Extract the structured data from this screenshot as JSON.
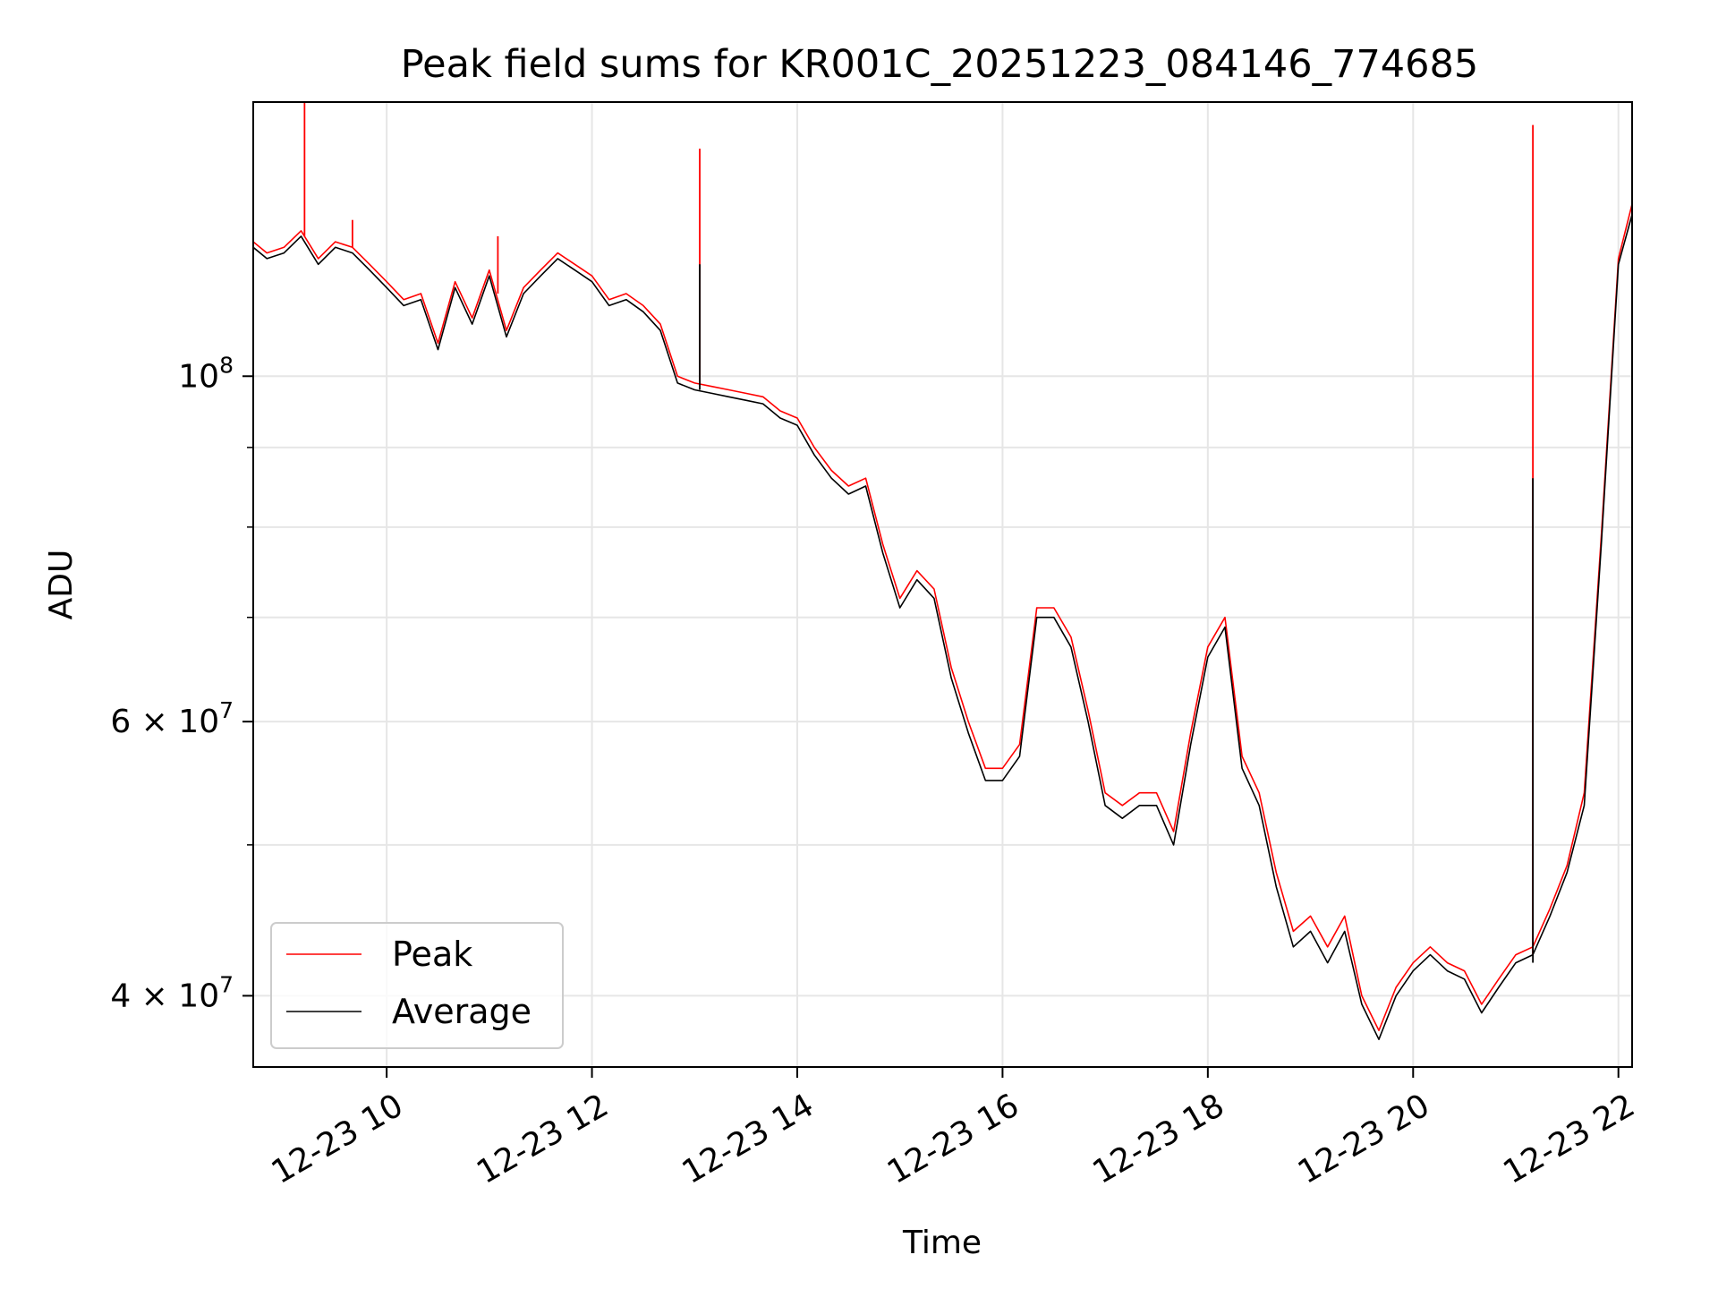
{
  "chart_data": {
    "type": "line",
    "title": "Peak field sums for KR001C_20251223_084146_774685",
    "xlabel": "Time",
    "ylabel": "ADU",
    "xlim": [
      "2025-12-23 08:42",
      "2025-12-23 22:08"
    ],
    "ylim": [
      36000000,
      150000000
    ],
    "yscale": "log",
    "grid": true,
    "legend": "lower-left",
    "colors": {
      "peak": "#ff0000",
      "average": "#000000",
      "grid": "#e6e6e6"
    },
    "x_ticks": [
      {
        "value": "2025-12-23 10:00",
        "label": "12-23 10"
      },
      {
        "value": "2025-12-23 12:00",
        "label": "12-23 12"
      },
      {
        "value": "2025-12-23 14:00",
        "label": "12-23 14"
      },
      {
        "value": "2025-12-23 16:00",
        "label": "12-23 16"
      },
      {
        "value": "2025-12-23 18:00",
        "label": "12-23 18"
      },
      {
        "value": "2025-12-23 20:00",
        "label": "12-23 20"
      },
      {
        "value": "2025-12-23 22:00",
        "label": "12-23 22"
      }
    ],
    "y_major_ticks": [
      {
        "value": 100000000,
        "base": "10",
        "exp": "8"
      },
      {
        "value": 60000000,
        "base": "6 × 10",
        "exp": "7"
      },
      {
        "value": 40000000,
        "base": "4 × 10",
        "exp": "7"
      }
    ],
    "y_minor_ticks": [
      50000000,
      70000000,
      80000000,
      90000000
    ],
    "series": [
      {
        "name": "Average",
        "x": [
          "2025-12-23 08:42",
          "2025-12-23 08:50",
          "2025-12-23 09:00",
          "2025-12-23 09:10",
          "2025-12-23 09:20",
          "2025-12-23 09:30",
          "2025-12-23 09:40",
          "2025-12-23 09:50",
          "2025-12-23 10:00",
          "2025-12-23 10:10",
          "2025-12-23 10:20",
          "2025-12-23 10:30",
          "2025-12-23 10:40",
          "2025-12-23 10:50",
          "2025-12-23 11:00",
          "2025-12-23 11:10",
          "2025-12-23 11:20",
          "2025-12-23 11:30",
          "2025-12-23 11:40",
          "2025-12-23 11:50",
          "2025-12-23 12:00",
          "2025-12-23 12:10",
          "2025-12-23 12:20",
          "2025-12-23 12:30",
          "2025-12-23 12:40",
          "2025-12-23 12:50",
          "2025-12-23 13:00",
          "2025-12-23 13:10",
          "2025-12-23 13:20",
          "2025-12-23 13:30",
          "2025-12-23 13:40",
          "2025-12-23 13:50",
          "2025-12-23 14:00",
          "2025-12-23 14:10",
          "2025-12-23 14:20",
          "2025-12-23 14:30",
          "2025-12-23 14:40",
          "2025-12-23 14:50",
          "2025-12-23 15:00",
          "2025-12-23 15:10",
          "2025-12-23 15:20",
          "2025-12-23 15:30",
          "2025-12-23 15:40",
          "2025-12-23 15:50",
          "2025-12-23 16:00",
          "2025-12-23 16:10",
          "2025-12-23 16:20",
          "2025-12-23 16:30",
          "2025-12-23 16:40",
          "2025-12-23 16:50",
          "2025-12-23 17:00",
          "2025-12-23 17:10",
          "2025-12-23 17:20",
          "2025-12-23 17:30",
          "2025-12-23 17:40",
          "2025-12-23 17:50",
          "2025-12-23 18:00",
          "2025-12-23 18:10",
          "2025-12-23 18:20",
          "2025-12-23 18:30",
          "2025-12-23 18:40",
          "2025-12-23 18:50",
          "2025-12-23 19:00",
          "2025-12-23 19:10",
          "2025-12-23 19:20",
          "2025-12-23 19:30",
          "2025-12-23 19:40",
          "2025-12-23 19:50",
          "2025-12-23 20:00",
          "2025-12-23 20:10",
          "2025-12-23 20:20",
          "2025-12-23 20:30",
          "2025-12-23 20:40",
          "2025-12-23 20:50",
          "2025-12-23 21:00",
          "2025-12-23 21:10",
          "2025-12-23 21:20",
          "2025-12-23 21:30",
          "2025-12-23 21:40",
          "2025-12-23 21:50",
          "2025-12-23 22:00",
          "2025-12-23 22:08"
        ],
        "values": [
          121000000,
          119000000,
          120000000,
          123000000,
          118000000,
          121000000,
          120000000,
          117000000,
          114000000,
          111000000,
          112000000,
          104000000,
          114000000,
          108000000,
          116000000,
          106000000,
          113000000,
          116000000,
          119000000,
          117000000,
          115000000,
          111000000,
          112000000,
          110000000,
          107000000,
          99000000,
          98000000,
          97500000,
          97000000,
          96500000,
          96000000,
          94000000,
          93000000,
          89000000,
          86000000,
          84000000,
          85000000,
          77000000,
          71000000,
          74000000,
          72000000,
          64000000,
          59000000,
          55000000,
          55000000,
          57000000,
          70000000,
          70000000,
          67000000,
          60000000,
          53000000,
          52000000,
          53000000,
          53000000,
          50000000,
          58000000,
          66000000,
          69000000,
          56000000,
          53000000,
          47000000,
          43000000,
          44000000,
          42000000,
          44000000,
          39500000,
          37500000,
          40000000,
          41500000,
          42500000,
          41500000,
          41000000,
          39000000,
          40500000,
          42000000,
          42500000,
          45000000,
          48000000,
          53000000,
          78000000,
          118000000,
          127000000
        ]
      },
      {
        "name": "Peak",
        "x": [
          "2025-12-23 08:42",
          "2025-12-23 08:50",
          "2025-12-23 09:00",
          "2025-12-23 09:10",
          "2025-12-23 09:20",
          "2025-12-23 09:30",
          "2025-12-23 09:40",
          "2025-12-23 09:50",
          "2025-12-23 10:00",
          "2025-12-23 10:10",
          "2025-12-23 10:20",
          "2025-12-23 10:30",
          "2025-12-23 10:40",
          "2025-12-23 10:50",
          "2025-12-23 11:00",
          "2025-12-23 11:10",
          "2025-12-23 11:20",
          "2025-12-23 11:30",
          "2025-12-23 11:40",
          "2025-12-23 11:50",
          "2025-12-23 12:00",
          "2025-12-23 12:10",
          "2025-12-23 12:20",
          "2025-12-23 12:30",
          "2025-12-23 12:40",
          "2025-12-23 12:50",
          "2025-12-23 13:00",
          "2025-12-23 13:10",
          "2025-12-23 13:20",
          "2025-12-23 13:30",
          "2025-12-23 13:40",
          "2025-12-23 13:50",
          "2025-12-23 14:00",
          "2025-12-23 14:10",
          "2025-12-23 14:20",
          "2025-12-23 14:30",
          "2025-12-23 14:40",
          "2025-12-23 14:50",
          "2025-12-23 15:00",
          "2025-12-23 15:10",
          "2025-12-23 15:20",
          "2025-12-23 15:30",
          "2025-12-23 15:40",
          "2025-12-23 15:50",
          "2025-12-23 16:00",
          "2025-12-23 16:10",
          "2025-12-23 16:20",
          "2025-12-23 16:30",
          "2025-12-23 16:40",
          "2025-12-23 16:50",
          "2025-12-23 17:00",
          "2025-12-23 17:10",
          "2025-12-23 17:20",
          "2025-12-23 17:30",
          "2025-12-23 17:40",
          "2025-12-23 17:50",
          "2025-12-23 18:00",
          "2025-12-23 18:10",
          "2025-12-23 18:20",
          "2025-12-23 18:30",
          "2025-12-23 18:40",
          "2025-12-23 18:50",
          "2025-12-23 19:00",
          "2025-12-23 19:10",
          "2025-12-23 19:20",
          "2025-12-23 19:30",
          "2025-12-23 19:40",
          "2025-12-23 19:50",
          "2025-12-23 20:00",
          "2025-12-23 20:10",
          "2025-12-23 20:20",
          "2025-12-23 20:30",
          "2025-12-23 20:40",
          "2025-12-23 20:50",
          "2025-12-23 21:00",
          "2025-12-23 21:10",
          "2025-12-23 21:20",
          "2025-12-23 21:30",
          "2025-12-23 21:40",
          "2025-12-23 21:50",
          "2025-12-23 22:00",
          "2025-12-23 22:08"
        ],
        "values": [
          122000000,
          120000000,
          121000000,
          124000000,
          119000000,
          122000000,
          121000000,
          118000000,
          115000000,
          112000000,
          113000000,
          105000000,
          115000000,
          109000000,
          117000000,
          107000000,
          114000000,
          117000000,
          120000000,
          118000000,
          116000000,
          112000000,
          113000000,
          111000000,
          108000000,
          100000000,
          99000000,
          98500000,
          98000000,
          97500000,
          97000000,
          95000000,
          94000000,
          90000000,
          87000000,
          85000000,
          86000000,
          78000000,
          72000000,
          75000000,
          73000000,
          65000000,
          60000000,
          56000000,
          56000000,
          58000000,
          71000000,
          71000000,
          68000000,
          61000000,
          54000000,
          53000000,
          54000000,
          54000000,
          51000000,
          59000000,
          67000000,
          70000000,
          57000000,
          54000000,
          48000000,
          44000000,
          45000000,
          43000000,
          45000000,
          40000000,
          38000000,
          40500000,
          42000000,
          43000000,
          42000000,
          41500000,
          39500000,
          41000000,
          42500000,
          43000000,
          45500000,
          48500000,
          54000000,
          79000000,
          119000000,
          129000000
        ]
      }
    ],
    "spikes": [
      {
        "series": "Peak",
        "x": "2025-12-23 09:12",
        "base": 123000000,
        "top": 150000000
      },
      {
        "series": "Peak",
        "x": "2025-12-23 09:40",
        "base": 121000000,
        "top": 126000000
      },
      {
        "series": "Peak",
        "x": "2025-12-23 11:05",
        "base": 113000000,
        "top": 123000000
      },
      {
        "series": "Peak",
        "x": "2025-12-23 13:03",
        "base": 99000000,
        "top": 140000000
      },
      {
        "series": "Average",
        "x": "2025-12-23 13:03",
        "base": 98000000,
        "top": 118000000
      },
      {
        "series": "Peak",
        "x": "2025-12-23 21:10",
        "base": 42500000,
        "top": 145000000
      },
      {
        "series": "Average",
        "x": "2025-12-23 21:10",
        "base": 42000000,
        "top": 86000000
      }
    ]
  }
}
